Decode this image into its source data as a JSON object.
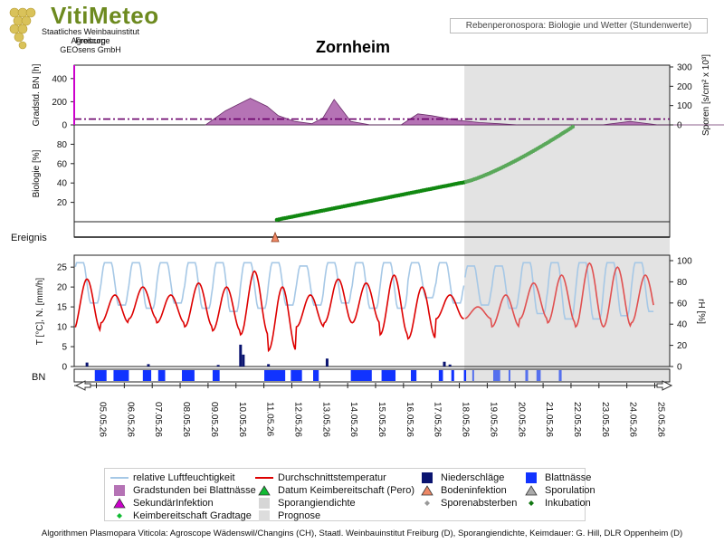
{
  "brand": {
    "name": "VitiMeteo",
    "lines": [
      "Staatliches Weinbauinstitut Freiburg",
      "Agroscope",
      "GEOsens GmbH"
    ]
  },
  "subtitle": "Rebenperonospora: Biologie und Wetter (Stundenwerte)",
  "title": "Zornheim",
  "footer": "Algorithmen Plasmopara Viticola: Agroscope Wädenswil/Changins (CH), Staatl. Weinbauinstitut Freiburg (D), Sporangiendichte, Keimdauer: G. Hill, DLR Oppenheim (D)",
  "chart_data": {
    "type": "line",
    "dates": [
      "05.05.26",
      "06.05.26",
      "07.05.26",
      "08.05.26",
      "09.05.26",
      "10.05.26",
      "11.05.26",
      "12.05.26",
      "13.05.26",
      "14.05.26",
      "15.05.26",
      "16.05.26",
      "17.05.26",
      "18.05.26",
      "19.05.26",
      "20.05.26",
      "21.05.26",
      "22.05.26",
      "23.05.26",
      "24.05.26",
      "25.05.26"
    ],
    "prognose_start": "18.05.26 16:00",
    "panels": {
      "gradstunden": {
        "ylabel": "Gradstd. BN [h]",
        "y2label": "Sporen [s/cm² x 10³]",
        "y_ticks": [
          "0",
          "200",
          "400"
        ],
        "y2_ticks": [
          "0",
          "100",
          "200",
          "300"
        ],
        "ylim": [
          0,
          500
        ],
        "threshold": 50,
        "series_days": [
          4.4,
          5.1,
          6.0,
          6.6,
          7.0,
          7.6,
          8.2,
          8.6,
          9.0,
          9.6,
          10.3,
          10.7,
          11.4,
          12.0,
          12.5,
          13.4,
          14.2,
          14.9,
          15.6,
          16.4,
          17.2,
          18.0,
          18.6,
          19.6,
          20.6,
          21.3,
          22.0,
          22.8,
          23.6
        ],
        "series_values": [
          0,
          120,
          230,
          160,
          80,
          30,
          10,
          60,
          220,
          30,
          0,
          0,
          0,
          95,
          80,
          40,
          20,
          10,
          0,
          0,
          0,
          0,
          0,
          30,
          0,
          0,
          0,
          0,
          0
        ]
      },
      "biologie": {
        "ylabel": "Biologie [%]",
        "y_ticks": [
          "20",
          "40",
          "60",
          "80"
        ],
        "ylim": [
          0,
          100
        ],
        "inkubation_start_day": 11.0,
        "inkubation_start_value": 0,
        "inkubation_end_day": 23.3,
        "inkubation_end_value": 98
      },
      "ereignis": {
        "label": "Ereignis",
        "events": [
          {
            "type": "Bodeninfektion",
            "day": 11.05
          }
        ]
      },
      "wetter": {
        "ylabel": "T [°C], N. [mm/h]",
        "y2label": "rH [%]",
        "y_ticks": [
          "0",
          "5",
          "10",
          "15",
          "20",
          "25"
        ],
        "y2_ticks": [
          "0",
          "20",
          "40",
          "60",
          "80",
          "100"
        ],
        "temp_ylim": [
          0,
          28
        ],
        "rh_ylim": [
          0,
          100
        ],
        "temp_min_by_day": [
          9,
          11,
          12,
          11,
          10,
          9,
          8,
          4,
          10,
          11,
          11,
          8,
          7,
          12,
          12,
          10,
          12,
          11,
          10,
          10,
          11
        ],
        "temp_max_by_day": [
          22,
          18,
          20,
          18,
          21,
          20,
          24,
          20,
          18,
          22,
          21,
          23,
          20,
          18,
          15,
          18,
          21,
          23,
          26,
          25,
          23
        ],
        "rh_min_by_day": [
          60,
          58,
          55,
          60,
          55,
          52,
          55,
          58,
          58,
          60,
          55,
          55,
          65,
          60,
          58,
          55,
          50,
          45,
          45,
          48,
          52
        ],
        "rh_max_by_day": [
          98,
          98,
          98,
          98,
          98,
          98,
          98,
          98,
          95,
          98,
          98,
          98,
          98,
          98,
          95,
          95,
          98,
          98,
          98,
          98,
          98
        ],
        "niederschlag": [
          {
            "day": 0.5,
            "mm": 1.0
          },
          {
            "day": 2.7,
            "mm": 0.6
          },
          {
            "day": 5.2,
            "mm": 0.4
          },
          {
            "day": 6.0,
            "mm": 5.5
          },
          {
            "day": 6.1,
            "mm": 3.0
          },
          {
            "day": 7.0,
            "mm": 0.6
          },
          {
            "day": 9.1,
            "mm": 2.0
          },
          {
            "day": 13.3,
            "mm": 1.2
          },
          {
            "day": 13.5,
            "mm": 0.5
          }
        ]
      },
      "blattnaesse": {
        "label": "BN",
        "intervals": [
          [
            0.78,
            1.2
          ],
          [
            1.45,
            2.0
          ],
          [
            2.5,
            2.8
          ],
          [
            3.05,
            3.3
          ],
          [
            3.9,
            4.35
          ],
          [
            5.0,
            5.25
          ],
          [
            6.85,
            7.6
          ],
          [
            7.8,
            8.2
          ],
          [
            8.6,
            8.8
          ],
          [
            9.95,
            10.7
          ],
          [
            11.05,
            11.55
          ],
          [
            12.1,
            12.3
          ],
          [
            13.1,
            13.25
          ],
          [
            13.55,
            13.65
          ],
          [
            14.0,
            14.08
          ],
          [
            14.3,
            14.35
          ],
          [
            15.05,
            15.3
          ],
          [
            15.6,
            15.65
          ],
          [
            16.2,
            16.3
          ],
          [
            16.6,
            16.75
          ],
          [
            17.4,
            17.5
          ]
        ]
      }
    },
    "legend": [
      {
        "label": "relative Luftfeuchtigkeit",
        "color": "#a6c8e6",
        "sym": "line"
      },
      {
        "label": "Durchschnittstemperatur",
        "color": "#dd0000",
        "sym": "line"
      },
      {
        "label": "Niederschläge",
        "color": "#0a1470",
        "sym": "square"
      },
      {
        "label": "Blattnässe",
        "color": "#1133ff",
        "sym": "square"
      },
      {
        "label": "Gradstunden bei Blattnässe",
        "color": "#b573b5",
        "sym": "square"
      },
      {
        "label": "Datum Keimbereitschaft (Pero)",
        "color": "#11bb33",
        "sym": "triangle"
      },
      {
        "label": "Bodeninfektion",
        "color": "#ee8866",
        "sym": "triangle"
      },
      {
        "label": "Sporulation",
        "color": "#aaaaaa",
        "sym": "triangle"
      },
      {
        "label": "SekundärInfektion",
        "color": "#cc00cc",
        "sym": "triangle"
      },
      {
        "label": "Sporangiendichte",
        "color": "#d6d6d6",
        "sym": "square"
      },
      {
        "label": "Sporenabsterben",
        "color": "#999999",
        "sym": "diamond"
      },
      {
        "label": "Inkubation",
        "color": "#117711",
        "sym": "diamond"
      },
      {
        "label": "Keimbereitschaft Gradtage",
        "color": "#11bb33",
        "sym": "diamond"
      },
      {
        "label": "Prognose",
        "color": "#dddddd",
        "sym": "square"
      }
    ]
  }
}
